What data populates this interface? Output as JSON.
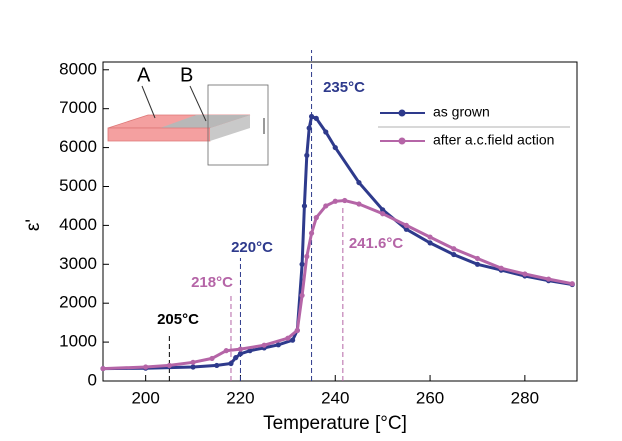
{
  "chart_data": {
    "type": "line",
    "x_label": "Temperature [°C]",
    "y_label": "ε'",
    "xlim": [
      191,
      291
    ],
    "ylim": [
      0,
      8200
    ],
    "xticks": [
      200,
      220,
      240,
      260,
      280
    ],
    "yticks": [
      0,
      1000,
      2000,
      3000,
      4000,
      5000,
      6000,
      7000,
      8000
    ],
    "legend": "upper right",
    "series": [
      {
        "name": "as grown",
        "color": "#2e3a8c",
        "x": [
          191,
          200,
          210,
          215,
          218,
          219,
          220,
          222,
          225,
          228,
          231,
          232,
          233,
          233.5,
          234,
          234.5,
          235,
          236,
          238,
          240,
          245,
          250,
          255,
          260,
          265,
          270,
          275,
          280,
          285,
          290
        ],
        "values": [
          320,
          330,
          360,
          400,
          450,
          600,
          700,
          780,
          850,
          930,
          1050,
          1300,
          3000,
          4500,
          5800,
          6500,
          6800,
          6750,
          6400,
          6000,
          5100,
          4400,
          3900,
          3550,
          3250,
          3000,
          2850,
          2700,
          2580,
          2480
        ]
      },
      {
        "name": "after a.c.field action",
        "color": "#b565a7",
        "x": [
          191,
          200,
          205,
          210,
          214,
          217,
          220,
          225,
          230,
          232,
          233,
          234,
          235,
          236,
          238,
          240,
          242,
          245,
          250,
          255,
          260,
          265,
          270,
          275,
          280,
          285,
          290
        ],
        "values": [
          320,
          360,
          400,
          480,
          580,
          780,
          820,
          920,
          1100,
          1300,
          2200,
          3200,
          3800,
          4200,
          4500,
          4620,
          4640,
          4550,
          4300,
          4000,
          3700,
          3400,
          3150,
          2900,
          2750,
          2620,
          2500
        ]
      }
    ],
    "annotations": [
      {
        "text": "205°C",
        "x": 205,
        "color": "#000000"
      },
      {
        "text": "218°C",
        "x": 218,
        "color": "#b565a7"
      },
      {
        "text": "220°C",
        "x": 220,
        "color": "#2e3a8c"
      },
      {
        "text": "235°C",
        "x": 235,
        "color": "#2e3a8c"
      },
      {
        "text": "241.6°C",
        "x": 241.6,
        "color": "#b565a7"
      }
    ],
    "inset": {
      "labels": [
        "A",
        "B"
      ]
    }
  }
}
